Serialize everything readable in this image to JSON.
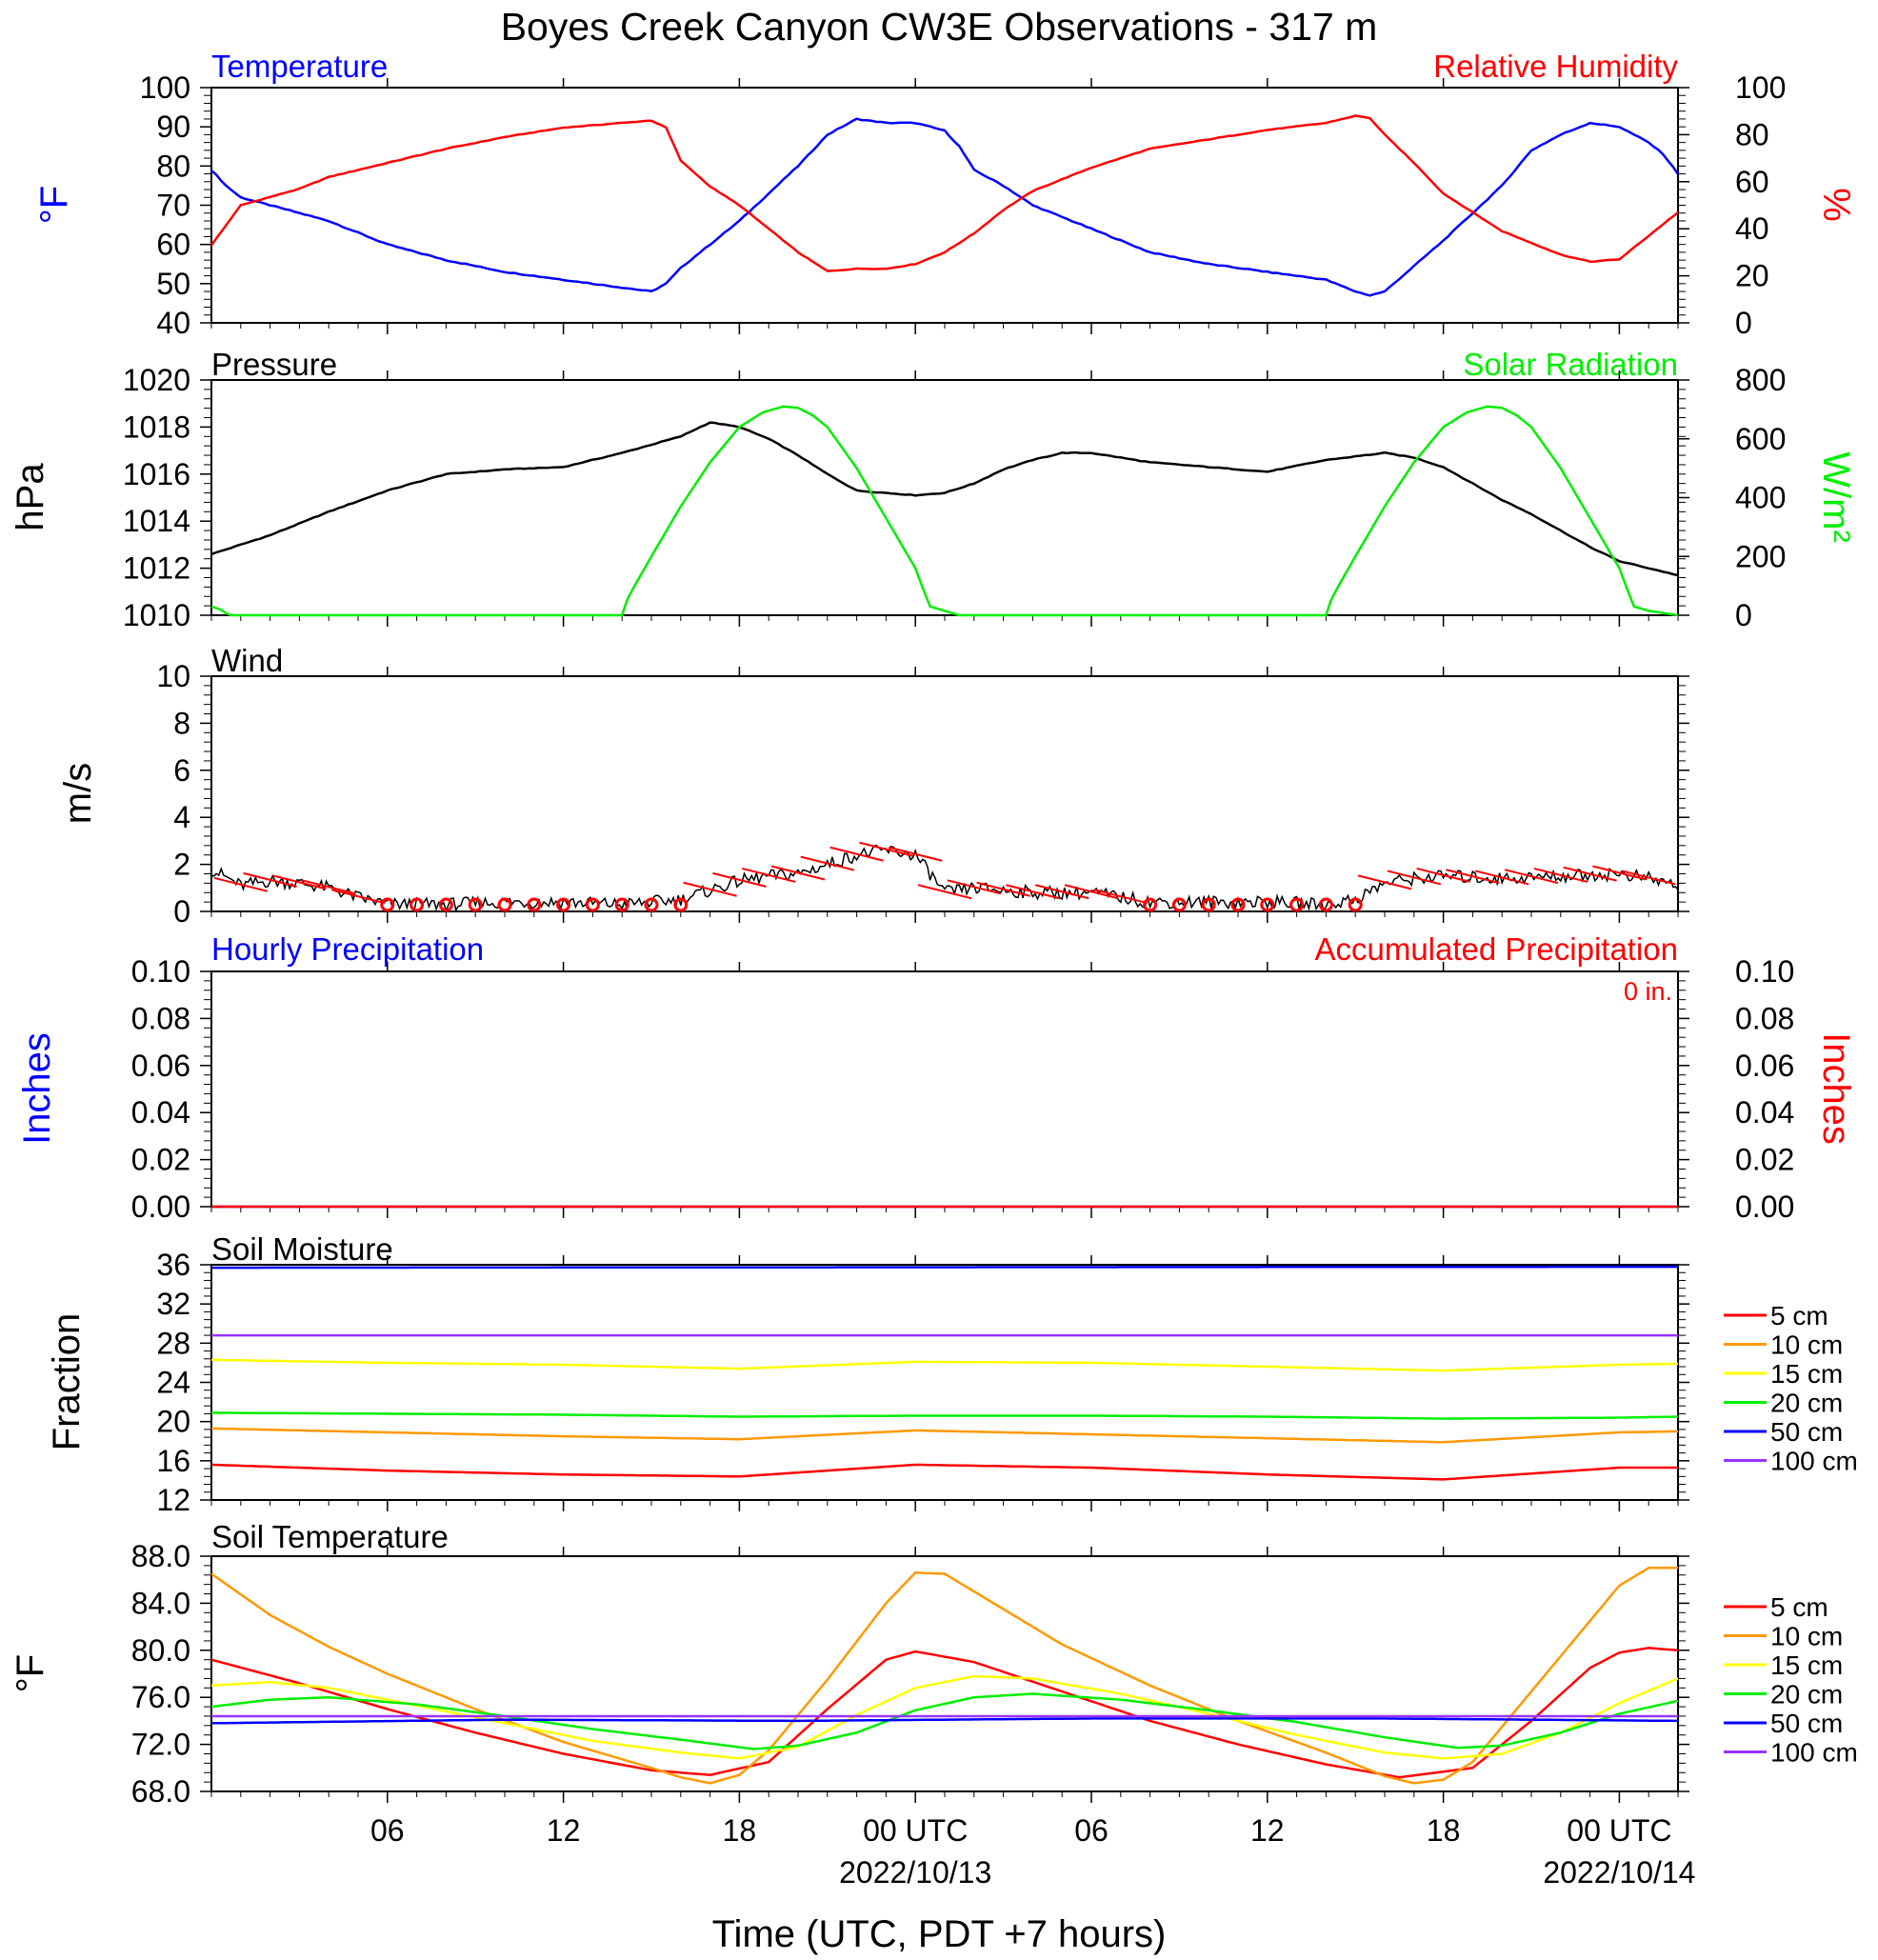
{
  "title": "Boyes Creek Canyon CW3E Observations - 317 m",
  "x_axis": {
    "label": "Time (UTC, PDT +7 hours)",
    "ticks": [
      {
        "hour": 6,
        "label": "06"
      },
      {
        "hour": 12,
        "label": "12"
      },
      {
        "hour": 18,
        "label": "18"
      },
      {
        "hour": 24,
        "label": "00 UTC",
        "date": "2022/10/13"
      },
      {
        "hour": 30,
        "label": "06"
      },
      {
        "hour": 36,
        "label": "12"
      },
      {
        "hour": 42,
        "label": "18"
      },
      {
        "hour": 48,
        "label": "00 UTC",
        "date": "2022/10/14"
      }
    ]
  },
  "colors": {
    "temperature": "#0000ff",
    "humidity": "#ff0000",
    "pressure": "#000000",
    "solar": "#00ee00",
    "wind": "#000000",
    "barb": "#ff0000",
    "precip_hourly": "#0000ff",
    "precip_accum": "#ff0000",
    "d5": "#ff0000",
    "d10": "#ff9900",
    "d15": "#ffff00",
    "d20": "#00ee00",
    "d50": "#0000ff",
    "d100": "#9933ff"
  },
  "panels": {
    "temp_rh": {
      "left_title": "Temperature",
      "right_title": "Relative Humidity",
      "left_unit": "°F",
      "right_unit": "%",
      "left_ticks": [
        "100",
        "90",
        "80",
        "70",
        "60",
        "50",
        "40"
      ],
      "right_ticks": [
        "100",
        "80",
        "60",
        "40",
        "20",
        "0"
      ]
    },
    "pressure_solar": {
      "left_title": "Pressure",
      "right_title": "Solar Radiation",
      "left_unit": "hPa",
      "right_unit": "W/m²",
      "left_ticks": [
        "1020",
        "1018",
        "1016",
        "1014",
        "1012",
        "1010"
      ],
      "right_ticks": [
        "800",
        "600",
        "400",
        "200",
        "0"
      ]
    },
    "wind": {
      "left_title": "Wind",
      "left_unit": "m/s",
      "left_ticks": [
        "10",
        "8",
        "6",
        "4",
        "2",
        "0"
      ]
    },
    "precip": {
      "left_title": "Hourly Precipitation",
      "right_title": "Accumulated Precipitation",
      "accum_value": "0 in.",
      "left_unit": "Inches",
      "right_unit": "Inches",
      "left_ticks": [
        "0.10",
        "0.08",
        "0.06",
        "0.04",
        "0.02",
        "0.00"
      ],
      "right_ticks": [
        "0.10",
        "0.08",
        "0.06",
        "0.04",
        "0.02",
        "0.00"
      ]
    },
    "soil_moisture": {
      "left_title": "Soil Moisture",
      "left_unit": "Fraction",
      "left_ticks": [
        "36",
        "32",
        "28",
        "24",
        "20",
        "16",
        "12"
      ],
      "legend": [
        "5 cm",
        "10 cm",
        "15 cm",
        "20 cm",
        "50 cm",
        "100 cm"
      ]
    },
    "soil_temp": {
      "left_title": "Soil Temperature",
      "left_unit": "°F",
      "left_ticks": [
        "88.0",
        "84.0",
        "80.0",
        "76.0",
        "72.0",
        "68.0"
      ],
      "legend": [
        "5 cm",
        "10 cm",
        "15 cm",
        "20 cm",
        "50 cm",
        "100 cm"
      ]
    }
  },
  "chart_data": [
    {
      "type": "line",
      "x_unit": "hours since 2022/10/12 00 UTC",
      "xlim": [
        0,
        50
      ],
      "ylim": [
        40,
        100
      ],
      "y2lim": [
        0,
        100
      ],
      "series": [
        {
          "name": "Temperature",
          "axis": "left",
          "x": [
            0,
            0.5,
            1,
            2,
            3,
            4,
            5,
            6,
            8,
            10,
            12,
            14,
            15,
            15.5,
            16,
            18,
            20,
            21,
            22,
            23,
            24,
            25,
            25.5,
            26,
            27,
            28,
            30,
            32,
            34,
            36,
            38,
            39,
            39.5,
            40,
            42,
            44,
            45,
            46,
            47,
            48,
            48.5,
            49,
            49.5,
            50
          ],
          "values": [
            79,
            75,
            72,
            70,
            68,
            66,
            63,
            60,
            56,
            53,
            51,
            49,
            48,
            50,
            54,
            66,
            80,
            88,
            92,
            91,
            91,
            89,
            85,
            79,
            75,
            70,
            64,
            58,
            55,
            53,
            51,
            48,
            47,
            48,
            61,
            75,
            84,
            88,
            91,
            90,
            88,
            86,
            83,
            78
          ]
        },
        {
          "name": "Relative Humidity",
          "axis": "right",
          "x": [
            0,
            1,
            3,
            4,
            6,
            8,
            10,
            12,
            14,
            15,
            15.5,
            16,
            17,
            18,
            20,
            21,
            22,
            23,
            24,
            25,
            26,
            27,
            28,
            30,
            32,
            34,
            36,
            38,
            39,
            39.5,
            40,
            41,
            42,
            44,
            46,
            47,
            48,
            48.5,
            49,
            50
          ],
          "values": [
            33,
            50,
            57,
            62,
            68,
            74,
            79,
            83,
            85,
            86,
            83,
            69,
            58,
            50,
            30,
            22,
            23,
            23,
            25,
            30,
            38,
            48,
            56,
            66,
            74,
            78,
            82,
            85,
            88,
            87,
            80,
            68,
            55,
            39,
            29,
            26,
            27,
            32,
            37,
            47
          ]
        }
      ]
    },
    {
      "type": "line",
      "x_unit": "hours since 2022/10/12 00 UTC",
      "xlim": [
        0,
        50
      ],
      "ylim": [
        1010,
        1020
      ],
      "y2lim": [
        0,
        800
      ],
      "series": [
        {
          "name": "Pressure",
          "axis": "left",
          "x": [
            0,
            2,
            4,
            6,
            8,
            10,
            12,
            14,
            16,
            17,
            18,
            19,
            20,
            21,
            22,
            23,
            24,
            25,
            26,
            27,
            28,
            29,
            30,
            31,
            32,
            34,
            36,
            38,
            40,
            41,
            42,
            43,
            44,
            45,
            46,
            47,
            48,
            49,
            50
          ],
          "values": [
            1012.6,
            1013.4,
            1014.4,
            1015.3,
            1016.0,
            1016.2,
            1016.3,
            1016.9,
            1017.6,
            1018.2,
            1018.0,
            1017.5,
            1016.8,
            1016.0,
            1015.3,
            1015.2,
            1015.1,
            1015.2,
            1015.6,
            1016.2,
            1016.6,
            1016.9,
            1016.9,
            1016.7,
            1016.5,
            1016.3,
            1016.1,
            1016.6,
            1016.9,
            1016.7,
            1016.3,
            1015.6,
            1014.9,
            1014.3,
            1013.6,
            1012.9,
            1012.3,
            1012.0,
            1011.7
          ]
        },
        {
          "name": "Solar Radiation",
          "axis": "right",
          "x": [
            0,
            0.3,
            0.6,
            13.8,
            14,
            14.2,
            15,
            16,
            17,
            18,
            18.8,
            19.5,
            20,
            20.5,
            21,
            22,
            23,
            24,
            24.3,
            24.5,
            25,
            25.5,
            26,
            37.8,
            38,
            38.2,
            39,
            40,
            41,
            42,
            42.8,
            43.5,
            44,
            44.5,
            45,
            46,
            47,
            48,
            48.3,
            48.5,
            49,
            50
          ],
          "values": [
            30,
            20,
            0,
            0,
            0,
            60,
            200,
            370,
            520,
            640,
            690,
            710,
            705,
            680,
            640,
            500,
            330,
            160,
            80,
            30,
            15,
            0,
            0,
            0,
            0,
            60,
            200,
            370,
            520,
            640,
            690,
            710,
            705,
            680,
            640,
            500,
            330,
            160,
            80,
            30,
            15,
            0
          ]
        }
      ]
    },
    {
      "type": "line",
      "x_unit": "hours since 2022/10/12 00 UTC",
      "xlim": [
        0,
        50
      ],
      "ylim": [
        0,
        10
      ],
      "series": [
        {
          "name": "Wind",
          "x": [
            0,
            1,
            2,
            3,
            4,
            5,
            6,
            8,
            10,
            12,
            14,
            16,
            17,
            18,
            19,
            20,
            21,
            22,
            23,
            24,
            24.5,
            25,
            26,
            27,
            28,
            30,
            32,
            34,
            36,
            38,
            39,
            40,
            41,
            42,
            44,
            46,
            48,
            49,
            50
          ],
          "values": [
            1.8,
            1.1,
            1.3,
            1.2,
            1.0,
            0.6,
            0.3,
            0.3,
            0.4,
            0.4,
            0.3,
            0.5,
            0.9,
            1.3,
            1.5,
            1.6,
            2.0,
            2.4,
            2.6,
            2.4,
            1.6,
            0.8,
            1.0,
            0.9,
            0.8,
            0.8,
            0.4,
            0.4,
            0.4,
            0.3,
            0.5,
            1.2,
            1.4,
            1.5,
            1.4,
            1.5,
            1.6,
            1.4,
            1.1
          ]
        }
      ]
    },
    {
      "type": "line",
      "x_unit": "hours since 2022/10/12 00 UTC",
      "xlim": [
        0,
        50
      ],
      "ylim": [
        0,
        0.1
      ],
      "series": [
        {
          "name": "Hourly Precipitation",
          "axis": "left",
          "x": [
            0,
            50
          ],
          "values": [
            0,
            0
          ]
        },
        {
          "name": "Accumulated Precipitation",
          "axis": "right",
          "x": [
            0,
            50
          ],
          "values": [
            0,
            0
          ]
        }
      ]
    },
    {
      "type": "line",
      "x_unit": "hours since 2022/10/12 00 UTC",
      "xlim": [
        0,
        50
      ],
      "ylim": [
        12,
        36
      ],
      "series": [
        {
          "name": "5 cm",
          "x": [
            0,
            6,
            12,
            18,
            24,
            30,
            36,
            42,
            48,
            50
          ],
          "values": [
            15.6,
            15.0,
            14.6,
            14.4,
            15.6,
            15.3,
            14.6,
            14.1,
            15.3,
            15.3
          ]
        },
        {
          "name": "10 cm",
          "x": [
            0,
            6,
            12,
            18,
            24,
            30,
            36,
            42,
            48,
            50
          ],
          "values": [
            19.3,
            18.9,
            18.5,
            18.2,
            19.1,
            18.7,
            18.3,
            17.9,
            18.9,
            19.0
          ]
        },
        {
          "name": "15 cm",
          "x": [
            0,
            6,
            12,
            18,
            24,
            30,
            36,
            42,
            48,
            50
          ],
          "values": [
            26.3,
            26.0,
            25.8,
            25.4,
            26.1,
            26.0,
            25.6,
            25.2,
            25.8,
            25.9
          ]
        },
        {
          "name": "20 cm",
          "x": [
            0,
            6,
            12,
            18,
            24,
            30,
            36,
            42,
            48,
            50
          ],
          "values": [
            20.9,
            20.8,
            20.7,
            20.5,
            20.6,
            20.6,
            20.5,
            20.3,
            20.4,
            20.5
          ]
        },
        {
          "name": "50 cm",
          "x": [
            0,
            50
          ],
          "values": [
            35.7,
            35.8
          ]
        },
        {
          "name": "100 cm",
          "x": [
            0,
            50
          ],
          "values": [
            28.8,
            28.8
          ]
        }
      ]
    },
    {
      "type": "line",
      "x_unit": "hours since 2022/10/12 00 UTC",
      "xlim": [
        0,
        50
      ],
      "ylim": [
        68,
        88
      ],
      "series": [
        {
          "name": "5 cm",
          "x": [
            0,
            3,
            6,
            9,
            12,
            15,
            17,
            19,
            21,
            23,
            24,
            26,
            29,
            32,
            35,
            38,
            40.5,
            43,
            45,
            47,
            48,
            49,
            50
          ],
          "values": [
            79.2,
            77.2,
            75.0,
            73.0,
            71.2,
            69.8,
            69.4,
            70.5,
            75.0,
            79.2,
            79.9,
            79.0,
            76.5,
            74.0,
            72.0,
            70.3,
            69.2,
            70.0,
            74.0,
            78.5,
            79.8,
            80.2,
            80.0
          ]
        },
        {
          "name": "10 cm",
          "x": [
            0,
            2,
            4,
            6,
            9,
            12,
            15,
            16,
            17,
            18,
            19,
            21,
            23,
            24,
            25,
            27,
            29,
            32,
            35,
            38,
            40,
            41,
            42,
            43,
            45,
            47,
            48,
            49,
            50
          ],
          "values": [
            86.5,
            83.0,
            80.3,
            78.0,
            75.0,
            72.2,
            70.0,
            69.2,
            68.7,
            69.4,
            71.5,
            77.5,
            84.0,
            86.6,
            86.5,
            83.5,
            80.5,
            77.0,
            74.0,
            71.3,
            69.3,
            68.7,
            69.0,
            70.5,
            76.5,
            82.5,
            85.5,
            87.0,
            87.0
          ]
        },
        {
          "name": "15 cm",
          "x": [
            0,
            2,
            4,
            7,
            10,
            13,
            16,
            18,
            20,
            22,
            24,
            26,
            28,
            31,
            34,
            37,
            40,
            42,
            44,
            46,
            48,
            50
          ],
          "values": [
            77.0,
            77.3,
            76.8,
            75.3,
            73.8,
            72.3,
            71.3,
            70.8,
            71.8,
            74.5,
            76.8,
            77.8,
            77.6,
            76.3,
            74.6,
            72.8,
            71.3,
            70.8,
            71.2,
            73.0,
            75.5,
            77.6
          ]
        },
        {
          "name": "20 cm",
          "x": [
            0,
            2,
            4,
            7,
            10,
            13,
            16,
            18.5,
            20,
            22,
            24,
            26,
            28,
            31,
            34,
            37,
            40,
            42.5,
            44,
            46,
            48,
            50
          ],
          "values": [
            75.2,
            75.8,
            76.0,
            75.4,
            74.4,
            73.3,
            72.4,
            71.6,
            71.9,
            73.0,
            74.9,
            76.0,
            76.3,
            75.8,
            74.9,
            73.9,
            72.6,
            71.7,
            71.9,
            73.0,
            74.6,
            75.7
          ]
        },
        {
          "name": "50 cm",
          "x": [
            0,
            10,
            20,
            30,
            40,
            50
          ],
          "values": [
            73.8,
            74.1,
            74.0,
            74.2,
            74.2,
            74.0
          ]
        },
        {
          "name": "100 cm",
          "x": [
            0,
            50
          ],
          "values": [
            74.4,
            74.4
          ]
        }
      ]
    }
  ]
}
